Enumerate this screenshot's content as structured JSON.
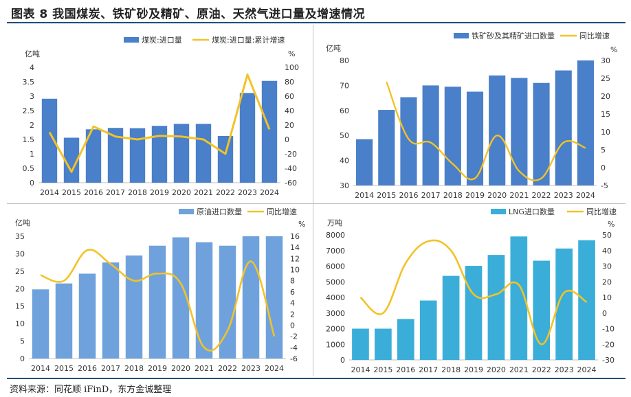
{
  "title": "图表 8   我国煤炭、铁矿砂及精矿、原油、天然气进口量及增速情况",
  "source": "资料来源：同花顺 iFinD，东方金诚整理",
  "colors": {
    "bar_coal": "#4a7fc9",
    "bar_iron": "#4a7fc9",
    "bar_oil": "#6fa2dc",
    "bar_lng": "#3aaed8",
    "line": "#f3c227"
  },
  "chart_data": [
    {
      "type": "bar",
      "categories": [
        "2014",
        "2015",
        "2016",
        "2017",
        "2018",
        "2019",
        "2020",
        "2021",
        "2022",
        "2023",
        "2024"
      ],
      "series": [
        {
          "name": "煤炭:进口量",
          "kind": "bar",
          "axis": "left",
          "values": [
            2.91,
            1.56,
            1.85,
            1.9,
            1.89,
            1.97,
            2.04,
            2.04,
            1.62,
            3.11,
            3.53
          ]
        },
        {
          "name": "煤炭:进口量:累计增速",
          "kind": "line",
          "axis": "right",
          "values": [
            10,
            -45,
            18,
            4,
            0,
            5,
            4,
            0,
            -20,
            90,
            14
          ]
        }
      ],
      "ylabel_left": "亿吨",
      "ylabel_right": "%",
      "ylim_left": [
        0,
        4
      ],
      "yticks_left": [
        "0",
        "0.5",
        "1",
        "1.5",
        "2",
        "2.5",
        "3",
        "3.5",
        "4"
      ],
      "ylim_right": [
        -60,
        100
      ],
      "yticks_right": [
        "-60",
        "-40",
        "-20",
        "0",
        "20",
        "40",
        "60",
        "80",
        "100"
      ],
      "legend": "top-center"
    },
    {
      "type": "bar",
      "categories": [
        "2014",
        "2015",
        "2016",
        "2017",
        "2018",
        "2019",
        "2020",
        "2021",
        "2022",
        "2023",
        "2024"
      ],
      "series": [
        {
          "name": "铁矿砂及其精矿进口数量",
          "kind": "bar",
          "axis": "left",
          "values": [
            48.5,
            60.2,
            65.3,
            70.0,
            69.5,
            67.5,
            74.0,
            73.0,
            71.0,
            76.0,
            80.0
          ]
        },
        {
          "name": "同比增速",
          "kind": "line",
          "axis": "right",
          "values": [
            null,
            24,
            8,
            7,
            1,
            -3,
            9,
            -1,
            -3,
            7,
            5.5
          ]
        }
      ],
      "ylabel_left": "亿吨",
      "ylabel_right": "%",
      "ylim_left": [
        30,
        80
      ],
      "yticks_left": [
        "30",
        "40",
        "50",
        "60",
        "70",
        "80"
      ],
      "ylim_right": [
        -5,
        30
      ],
      "yticks_right": [
        "-5",
        "0",
        "5",
        "10",
        "15",
        "20",
        "25",
        "30"
      ],
      "legend": "top-right"
    },
    {
      "type": "bar",
      "categories": [
        "2014",
        "2015",
        "2016",
        "2017",
        "2018",
        "2019",
        "2020",
        "2021",
        "2022",
        "2023",
        "2024"
      ],
      "series": [
        {
          "name": "原油进口数量",
          "kind": "bar",
          "axis": "left",
          "values": [
            19.8,
            21.5,
            24.3,
            27.5,
            29.5,
            32.3,
            34.7,
            33.3,
            32.3,
            35.0,
            35.0
          ]
        },
        {
          "name": "同比增速",
          "kind": "line",
          "axis": "right",
          "values": [
            9,
            8,
            13.5,
            11,
            8,
            9.3,
            7.5,
            -4,
            -1,
            11.5,
            -2
          ]
        }
      ],
      "ylabel_left": "亿吨",
      "ylabel_right": "%",
      "ylim_left": [
        0,
        35
      ],
      "yticks_left": [
        "0",
        "5",
        "10",
        "15",
        "20",
        "25",
        "30",
        "35"
      ],
      "ylim_right": [
        -6,
        16
      ],
      "yticks_right": [
        "-6",
        "-4",
        "-2",
        "0",
        "2",
        "4",
        "6",
        "8",
        "10",
        "12",
        "14",
        "16"
      ],
      "legend": "top-right"
    },
    {
      "type": "bar",
      "categories": [
        "2014",
        "2015",
        "2016",
        "2017",
        "2018",
        "2019",
        "2020",
        "2021",
        "2022",
        "2023",
        "2024"
      ],
      "series": [
        {
          "name": "LNG进口数量",
          "kind": "bar",
          "axis": "left",
          "values": [
            2000,
            2000,
            2620,
            3800,
            5380,
            6020,
            6720,
            7900,
            6350,
            7130,
            7660
          ]
        },
        {
          "name": "同比增速",
          "kind": "line",
          "axis": "right",
          "values": [
            10,
            0,
            32,
            46,
            40,
            12,
            12,
            18,
            -20,
            13,
            7
          ]
        }
      ],
      "ylabel_left": "万吨",
      "ylabel_right": "%",
      "ylim_left": [
        0,
        8000
      ],
      "yticks_left": [
        "0",
        "1000",
        "2000",
        "3000",
        "4000",
        "5000",
        "6000",
        "7000",
        "8000"
      ],
      "ylim_right": [
        -30,
        50
      ],
      "yticks_right": [
        "-30",
        "-20",
        "-10",
        "0",
        "10",
        "20",
        "30",
        "40",
        "50"
      ],
      "legend": "top-right"
    }
  ]
}
